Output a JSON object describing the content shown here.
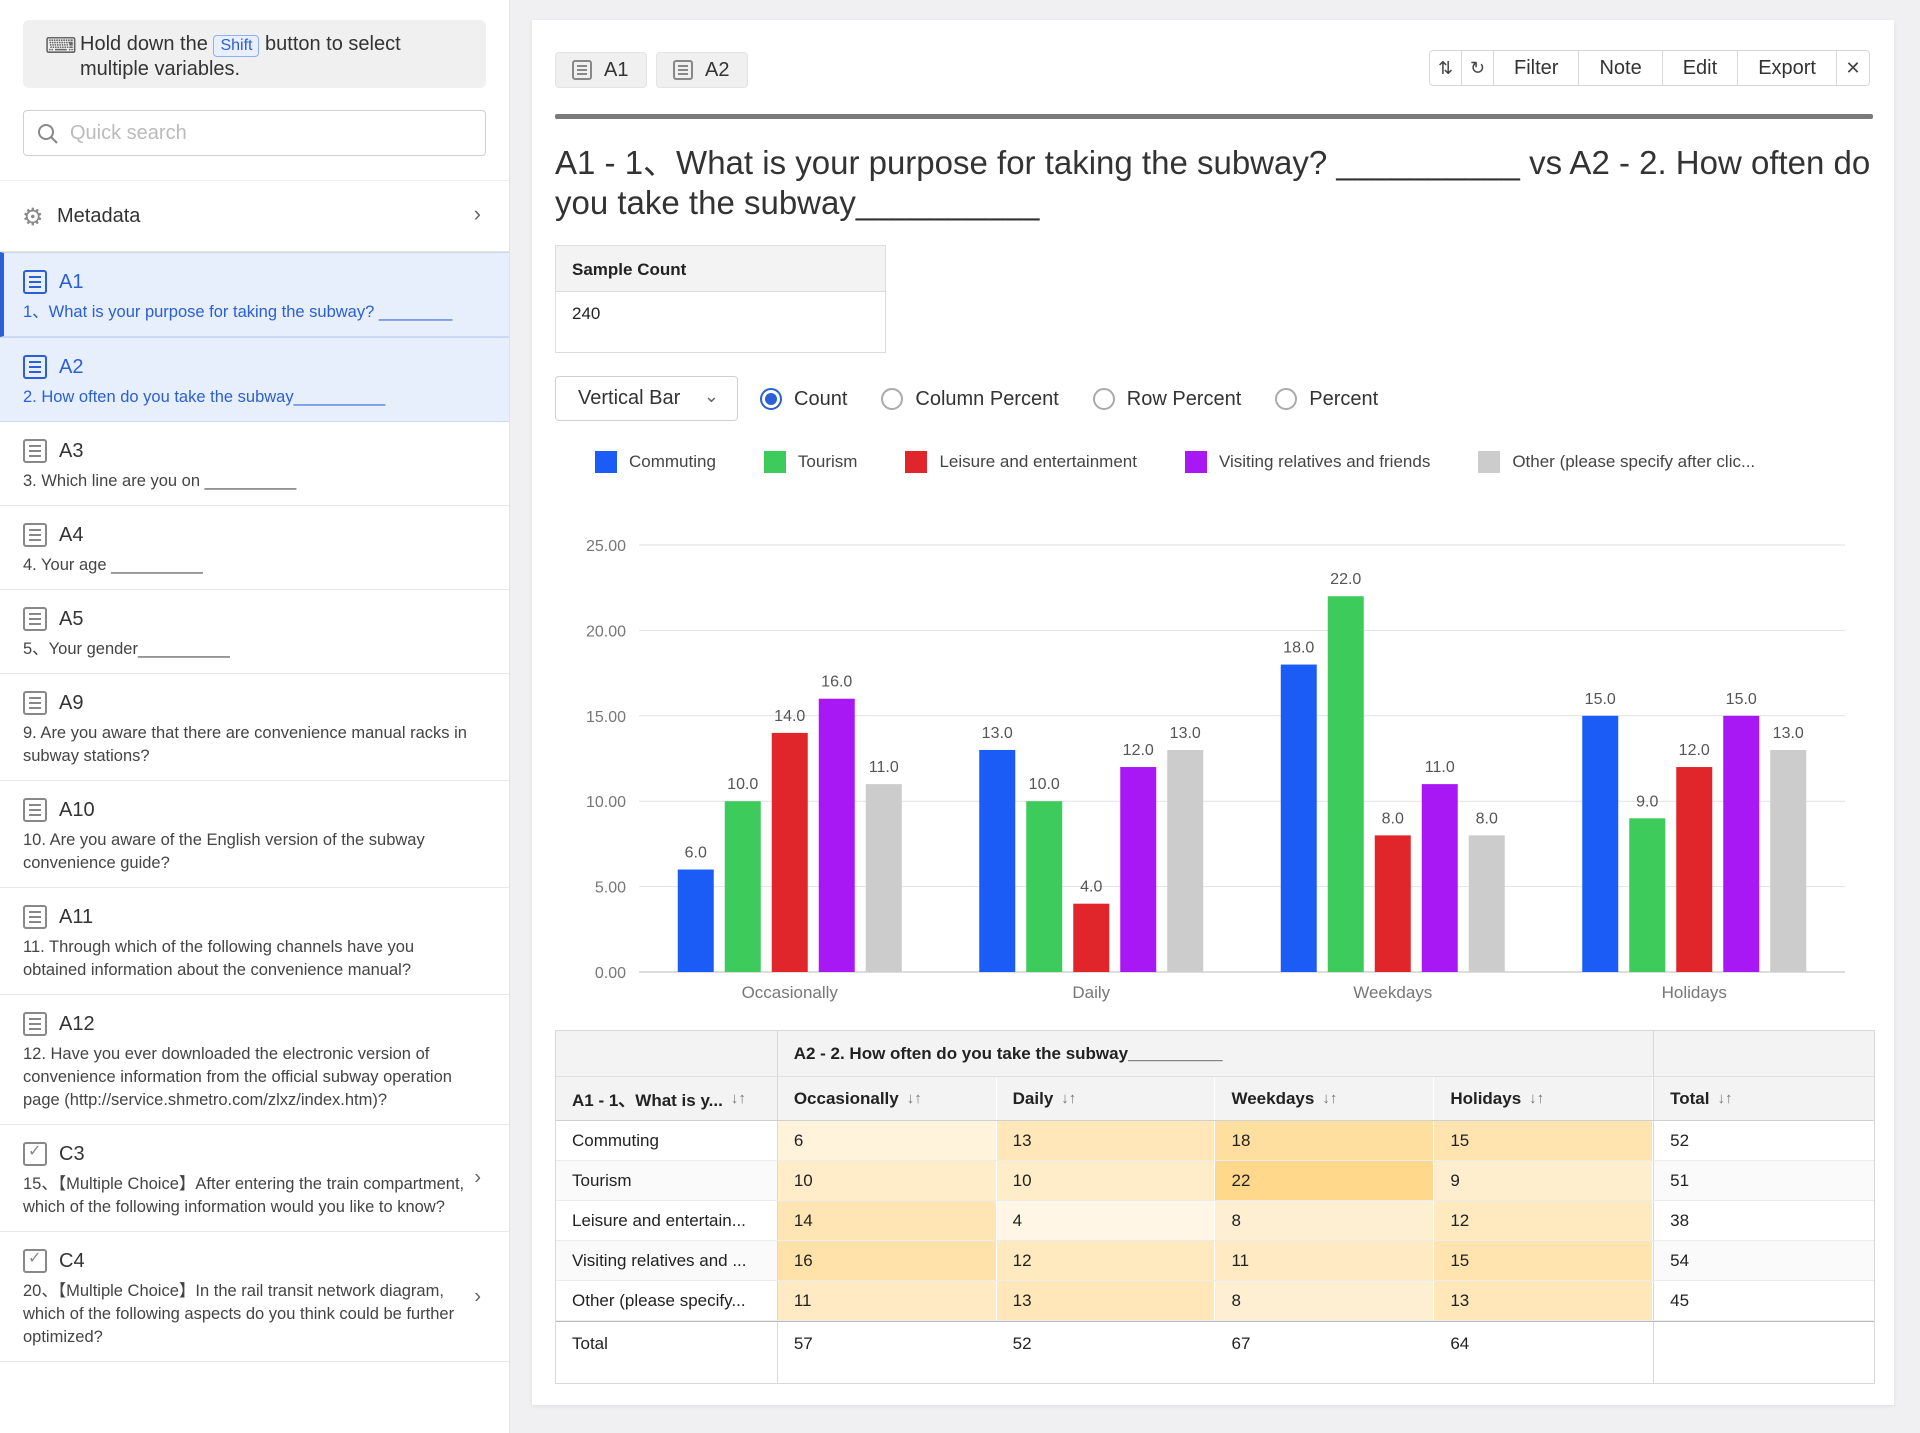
{
  "sidebar": {
    "hint_before": "Hold down the",
    "hint_key": "Shift",
    "hint_after": "button to select multiple variables.",
    "search_placeholder": "Quick search",
    "metadata_label": "Metadata",
    "items": [
      {
        "code": "A1",
        "desc": "1、What is your purpose for taking the subway? ________",
        "selected": true
      },
      {
        "code": "A2",
        "desc": "2. How often do you take the subway__________",
        "selected": true
      },
      {
        "code": "A3",
        "desc": "3. Which line are you on __________",
        "selected": false
      },
      {
        "code": "A4",
        "desc": "4. Your age __________",
        "selected": false
      },
      {
        "code": "A5",
        "desc": "5、Your gender__________",
        "selected": false
      },
      {
        "code": "A9",
        "desc": "9. Are you aware that there are convenience manual racks in subway stations?",
        "selected": false
      },
      {
        "code": "A10",
        "desc": "10. Are you aware of the English version of the subway convenience guide?",
        "selected": false
      },
      {
        "code": "A11",
        "desc": "11. Through which of the following channels have you obtained information about the convenience manual?",
        "selected": false
      },
      {
        "code": "A12",
        "desc": "12. Have you ever downloaded the electronic version of convenience information from the official subway operation page (http://service.shmetro.com/zlxz/index.htm)?",
        "selected": false
      },
      {
        "code": "C3",
        "desc": "15、【Multiple Choice】After entering the train compartment, which of the following information would you like to know?",
        "selected": false
      },
      {
        "code": "C4",
        "desc": "20、【Multiple Choice】In the rail transit network diagram, which of the following aspects do you think could be further optimized?",
        "selected": false
      }
    ]
  },
  "tabs": [
    "A1",
    "A2"
  ],
  "toolbar": {
    "filter": "Filter",
    "note": "Note",
    "edit": "Edit",
    "export": "Export"
  },
  "title": "A1 - 1、What is your purpose for taking the subway? __________ vs A2 - 2. How often do you take the subway__________",
  "sample": {
    "label": "Sample Count",
    "value": "240"
  },
  "chart_type": "Vertical Bar",
  "radio_options": [
    "Count",
    "Column Percent",
    "Row Percent",
    "Percent"
  ],
  "radio_selected": "Count",
  "legend_labels": [
    "Commuting",
    "Tourism",
    "Leisure and entertainment",
    "Visiting relatives and friends",
    "Other (please specify after clic..."
  ],
  "chart_data": {
    "type": "bar",
    "categories": [
      "Occasionally",
      "Daily",
      "Weekdays",
      "Holidays"
    ],
    "series": [
      {
        "name": "Commuting",
        "color": "#1a5cf5",
        "values": [
          6,
          13,
          18,
          15
        ]
      },
      {
        "name": "Tourism",
        "color": "#3dcc5c",
        "values": [
          10,
          10,
          22,
          9
        ]
      },
      {
        "name": "Leisure and entertainment",
        "color": "#e0262b",
        "values": [
          14,
          4,
          8,
          12
        ]
      },
      {
        "name": "Visiting relatives and friends",
        "color": "#a818f5",
        "values": [
          16,
          12,
          11,
          15
        ]
      },
      {
        "name": "Other (please specify after clic...",
        "color": "#cccccc",
        "values": [
          11,
          13,
          8,
          13
        ]
      }
    ],
    "ylim": [
      0,
      25
    ],
    "yticks": [
      "0.00",
      "5.00",
      "10.00",
      "15.00",
      "20.00",
      "25.00"
    ],
    "grid": true,
    "legend": "top"
  },
  "table": {
    "col_group": "A2 - 2. How often do you take the subway__________",
    "row_header": "A1 - 1、What is y...",
    "columns": [
      "Occasionally",
      "Daily",
      "Weekdays",
      "Holidays"
    ],
    "total_label": "Total",
    "sort_glyph": "↓↑",
    "rows": [
      {
        "label": "Commuting",
        "values": [
          "6",
          "13",
          "18",
          "15"
        ],
        "total": "52"
      },
      {
        "label": "Tourism",
        "values": [
          "10",
          "10",
          "22",
          "9"
        ],
        "total": "51"
      },
      {
        "label": "Leisure and entertain...",
        "values": [
          "14",
          "4",
          "8",
          "12"
        ],
        "total": "38"
      },
      {
        "label": "Visiting relatives and ...",
        "values": [
          "16",
          "12",
          "11",
          "15"
        ],
        "total": "54"
      },
      {
        "label": "Other (please specify...",
        "values": [
          "11",
          "13",
          "8",
          "13"
        ],
        "total": "45"
      }
    ],
    "totals_row_label": "Total",
    "col_totals": [
      "57",
      "52",
      "67",
      "64"
    ]
  }
}
